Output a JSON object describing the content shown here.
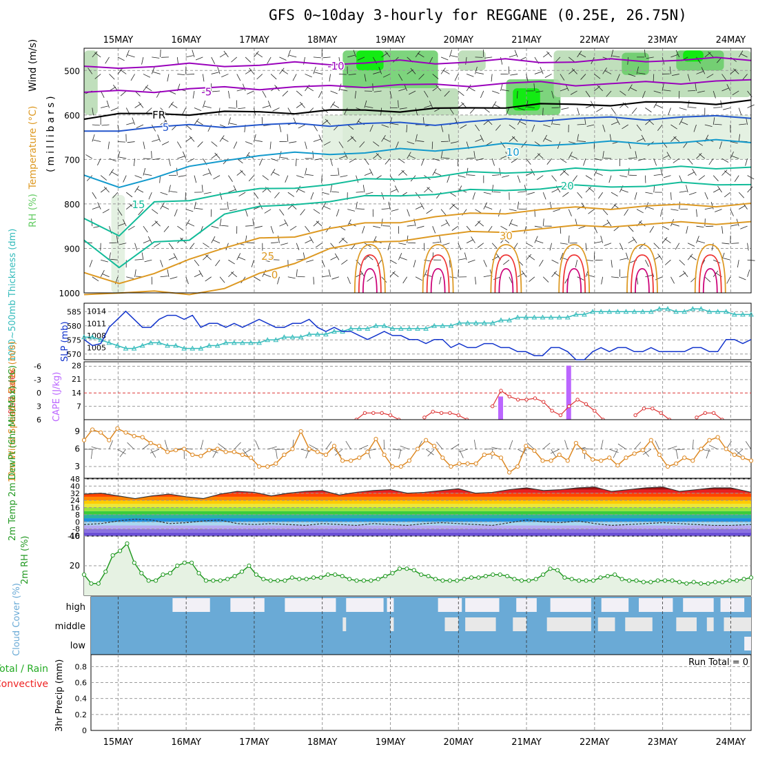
{
  "title": "GFS 0~10day 3-hourly for REGGANE (0.25E, 26.75N)",
  "colors": {
    "frame": "#000000",
    "grid": "#999999",
    "rh_light": "#dfeedd",
    "rh_mid": "#b5d9b0",
    "rh_strong": "#66cc66",
    "rh_bright": "#00ee00",
    "temp_purple": "#9900bb",
    "temp_blue": "#2255cc",
    "temp_cyan": "#1199cc",
    "temp_teal": "#11bb99",
    "temp_orange": "#dd9922",
    "temp_red": "#ee3333",
    "temp_magenta": "#cc0077",
    "slp": "#1133cc",
    "thickness": "#33bbbb",
    "lifted_index": "#dd3333",
    "cape": "#bb66ff",
    "wind10": "#dd8822",
    "rh2m": "#229922",
    "rh2m_fill": "#e6f2e3",
    "rh2m_fill_dark": "#a9cba4",
    "cloud": "#6aaad6",
    "cloud_gap": "#f2f0f6",
    "cloud_gap2": "#e8e8e8",
    "precip_total": "#22aa22",
    "precip_conv": "#ee2222"
  },
  "chart_data": [
    {
      "id": "upper_air",
      "type": "heatmap",
      "ylabel_parts": [
        "RH (%)",
        "Temperature (°C)",
        "Wind (m/s)"
      ],
      "ylabel_sub": "(millibars)",
      "y_ticks": [
        500,
        600,
        700,
        800,
        900,
        1000
      ],
      "ylim": [
        450,
        1000
      ],
      "x_ticks": [
        "15MAY",
        "16MAY",
        "17MAY",
        "18MAY",
        "19MAY",
        "20MAY",
        "21MAY",
        "22MAY",
        "23MAY",
        "24MAY"
      ],
      "x_day_start": 14.5,
      "x_day_end": 24.3,
      "isotherms": [
        {
          "label": "-10",
          "color_key": "temp_purple",
          "p": [
            495,
            492,
            490,
            488,
            488,
            487,
            485,
            484,
            482,
            481,
            482,
            480,
            478,
            479,
            480,
            478,
            477,
            476,
            475,
            474
          ]
        },
        {
          "label": "-5",
          "color_key": "temp_purple",
          "p": [
            550,
            548,
            545,
            542,
            540,
            539,
            538,
            537,
            534,
            533,
            534,
            532,
            530,
            528,
            530,
            531,
            528,
            526,
            525,
            524
          ]
        },
        {
          "label": "FR",
          "color_key": "frame",
          "p": [
            605,
            600,
            598,
            596,
            595,
            594,
            593,
            592,
            590,
            589,
            588,
            585,
            580,
            578,
            577,
            575,
            574,
            572,
            572,
            570
          ]
        },
        {
          "label": "5",
          "color_key": "temp_blue",
          "p": [
            640,
            632,
            628,
            625,
            624,
            623,
            622,
            621,
            620,
            620,
            619,
            616,
            612,
            610,
            609,
            608,
            607,
            606,
            605,
            603
          ]
        },
        {
          "label": "10",
          "color_key": "temp_cyan",
          "p": [
            740,
            760,
            740,
            720,
            700,
            690,
            688,
            686,
            684,
            680,
            678,
            672,
            668,
            666,
            664,
            663,
            662,
            661,
            660,
            659
          ]
        },
        {
          "label": "15",
          "color_key": "temp_teal",
          "p": [
            830,
            870,
            800,
            790,
            775,
            770,
            762,
            755,
            748,
            742,
            738,
            732,
            728,
            726,
            724,
            722,
            721,
            720,
            718,
            716
          ]
        },
        {
          "label": "20",
          "color_key": "temp_teal",
          "p": [
            880,
            940,
            890,
            880,
            820,
            810,
            800,
            792,
            786,
            780,
            776,
            772,
            768,
            764,
            762,
            760,
            758,
            756,
            755,
            754
          ]
        },
        {
          "label": "25",
          "color_key": "temp_orange",
          "p": [
            950,
            980,
            960,
            920,
            900,
            880,
            870,
            856,
            846,
            838,
            830,
            824,
            818,
            814,
            810,
            808,
            806,
            804,
            802,
            800
          ]
        },
        {
          "label": "30",
          "color_key": "temp_orange",
          "p": [
            1000,
            1000,
            1000,
            1000,
            990,
            960,
            930,
            900,
            890,
            880,
            872,
            866,
            860,
            856,
            852,
            848,
            846,
            844,
            842,
            840
          ]
        }
      ],
      "contour_labels": [
        "-10",
        "-5",
        "FR",
        "5",
        "10",
        "15",
        "20",
        "25",
        "30",
        "0"
      ],
      "rh_patches": [
        {
          "x0": 18.3,
          "x1": 19.7,
          "p0": 455,
          "p1": 540,
          "level": "rh_strong"
        },
        {
          "x0": 18.5,
          "x1": 18.9,
          "p0": 455,
          "p1": 500,
          "level": "rh_bright"
        },
        {
          "x0": 18.3,
          "x1": 20.0,
          "p0": 540,
          "p1": 700,
          "level": "rh_mid"
        },
        {
          "x0": 18.0,
          "x1": 24.3,
          "p0": 600,
          "p1": 700,
          "level": "rh_light"
        },
        {
          "x0": 20.7,
          "x1": 21.5,
          "p0": 520,
          "p1": 600,
          "level": "rh_strong"
        },
        {
          "x0": 20.8,
          "x1": 21.2,
          "p0": 540,
          "p1": 590,
          "level": "rh_bright"
        },
        {
          "x0": 21.4,
          "x1": 24.3,
          "p0": 455,
          "p1": 560,
          "level": "rh_mid"
        },
        {
          "x0": 22.4,
          "x1": 22.8,
          "p0": 460,
          "p1": 510,
          "level": "rh_strong"
        },
        {
          "x0": 23.2,
          "x1": 23.9,
          "p0": 455,
          "p1": 500,
          "level": "rh_strong"
        },
        {
          "x0": 23.3,
          "x1": 23.6,
          "p0": 455,
          "p1": 480,
          "level": "rh_bright"
        },
        {
          "x0": 20.0,
          "x1": 20.4,
          "p0": 455,
          "p1": 500,
          "level": "rh_mid"
        },
        {
          "x0": 14.5,
          "x1": 14.7,
          "p0": 455,
          "p1": 600,
          "level": "rh_mid"
        },
        {
          "x0": 14.9,
          "x1": 15.1,
          "p0": 780,
          "p1": 1000,
          "level": "rh_light"
        }
      ]
    },
    {
      "id": "slp_thickness",
      "type": "line",
      "ylabel_left": "1000~500mb Thickness (dm)",
      "ylabel_right": "SLP (mb)",
      "left_ticks": [
        570,
        575,
        580,
        585
      ],
      "right_ticks": [
        1005,
        1008,
        1011,
        1014
      ],
      "series": [
        {
          "name": "SLP (mb)",
          "color_key": "slp",
          "values": [
            1007,
            1005.5,
            1006,
            1010,
            1012,
            1014,
            1012,
            1010,
            1010,
            1012,
            1013,
            1013,
            1012,
            1013,
            1010,
            1011,
            1011,
            1010,
            1011,
            1010,
            1011,
            1012,
            1011,
            1010,
            1010,
            1011,
            1011,
            1012,
            1010,
            1009,
            1010,
            1009,
            1009,
            1008,
            1007,
            1008,
            1009,
            1008,
            1008,
            1007,
            1007,
            1006,
            1007,
            1007,
            1005,
            1006,
            1005,
            1005,
            1006,
            1006,
            1005,
            1005,
            1004,
            1004,
            1003,
            1003,
            1005,
            1005,
            1004,
            1002,
            1002,
            1004,
            1005,
            1004,
            1005,
            1005,
            1004,
            1004,
            1005,
            1004,
            1004,
            1004,
            1004,
            1005,
            1005,
            1004,
            1004,
            1007,
            1007,
            1006,
            1007
          ]
        },
        {
          "name": "Thickness (dm)",
          "color_key": "thickness",
          "values": [
            576,
            576,
            575,
            574,
            573,
            572,
            572,
            573,
            574,
            574,
            573,
            573,
            572,
            572,
            572,
            573,
            573,
            574,
            574,
            574,
            574,
            574,
            575,
            575,
            576,
            576,
            576,
            577,
            577,
            577,
            578,
            578,
            579,
            579,
            579,
            580,
            580,
            579,
            579,
            579,
            579,
            579,
            580,
            580,
            580,
            581,
            581,
            581,
            581,
            581,
            582,
            582,
            583,
            583,
            583,
            583,
            583,
            583,
            583,
            584,
            584,
            585,
            585,
            585,
            585,
            585,
            585,
            585,
            585,
            586,
            586,
            585,
            585,
            586,
            586,
            585,
            585,
            585,
            584,
            584,
            584
          ]
        }
      ]
    },
    {
      "id": "lifted_cape",
      "type": "bar",
      "ylabel_left": "Lifted Index",
      "ylabel_right": "CAPE (J/kg)",
      "left_ticks": [
        "-6",
        "-3",
        "0",
        "3",
        "6"
      ],
      "right_ticks": [
        7,
        14,
        21,
        28
      ],
      "cape_bars": [
        {
          "day": 20.62,
          "value": 12
        },
        {
          "day": 21.62,
          "value": 28
        }
      ],
      "lifted_index": [
        {
          "day": 18.5,
          "values": [
            6,
            4.5,
            4.5,
            4.5,
            5,
            6
          ]
        },
        {
          "day": 19.5,
          "values": [
            5.5,
            4.2,
            4.5,
            4.5,
            5,
            6
          ]
        },
        {
          "day": 20.5,
          "values": [
            3,
            -0.5,
            0.8,
            1.5,
            1.5,
            1.2,
            2,
            4,
            5,
            3,
            1.5,
            2.5,
            4,
            6
          ]
        },
        {
          "day": 22.6,
          "values": [
            5,
            3.5,
            3.5,
            4.5,
            6
          ]
        },
        {
          "day": 23.5,
          "values": [
            5.5,
            4.5,
            4.5,
            6
          ]
        }
      ]
    },
    {
      "id": "wind10",
      "type": "line",
      "ylabel": "10m Wind Speed & Barbs (m/s)",
      "ticks": [
        3,
        6,
        9
      ],
      "series": [
        {
          "name": "10m Wind Speed",
          "color_key": "wind10",
          "values": [
            7.5,
            9.3,
            8.8,
            7.5,
            9.5,
            8.8,
            8.2,
            8,
            7,
            6.5,
            5.5,
            5.8,
            6,
            5,
            4.8,
            5.8,
            6,
            5.5,
            5.5,
            5,
            4.5,
            3,
            3,
            3.5,
            5,
            6,
            9,
            6,
            5.5,
            5,
            6.5,
            4,
            4,
            4.5,
            5.5,
            7.7,
            5,
            3,
            3,
            4,
            6,
            7.5,
            6.5,
            4.5,
            3,
            3.5,
            3.5,
            3.5,
            5,
            5.2,
            4.5,
            2,
            3,
            6.5,
            5.7,
            4,
            4,
            5,
            4,
            7,
            5.5,
            4.2,
            4,
            4.5,
            3.2,
            4.5,
            5.2,
            5.8,
            7.5,
            5,
            3,
            3.5,
            4.5,
            4,
            6,
            7.5,
            8,
            6,
            5,
            4.5,
            4
          ]
        }
      ]
    },
    {
      "id": "temp2m",
      "type": "area",
      "ylabel": "2m Temp 2m DewPt (6hr Min/Max) (°C)",
      "ticks": [
        -8,
        0,
        8,
        16,
        24,
        32,
        40,
        48
      ],
      "tick_labels": [
        "-8",
        "0",
        "8",
        "16",
        "24",
        "32",
        "40",
        "48"
      ],
      "bottom_label": "-16",
      "temp_days": [
        14.5,
        14.75,
        15.0,
        15.25,
        15.5,
        15.75,
        16.0,
        16.25,
        16.5,
        16.75,
        17.0,
        17.25,
        17.5,
        17.75,
        18.0,
        18.25,
        18.5,
        18.75,
        19.0,
        19.25,
        19.5,
        19.75,
        20.0,
        20.25,
        20.5,
        20.75,
        21.0,
        21.25,
        21.5,
        21.75,
        22.0,
        22.25,
        22.5,
        22.75,
        23.0,
        23.25,
        23.5,
        23.75,
        24.0,
        24.3
      ],
      "temp_values": [
        31,
        32,
        29,
        26,
        29,
        31,
        28,
        26,
        31,
        34,
        33,
        29,
        32,
        34,
        35,
        30,
        33,
        35,
        36,
        32,
        33,
        35,
        37,
        32,
        33,
        36,
        38,
        35,
        36,
        38,
        39,
        34,
        36,
        38,
        39,
        34,
        36,
        38,
        38,
        33
      ],
      "dew_values": [
        -3,
        -2,
        1,
        3,
        2,
        -2,
        -1,
        1,
        2,
        -2,
        -3,
        -2,
        -3,
        -4,
        -2,
        -3,
        -4,
        -2,
        -3,
        -4,
        -2,
        -1,
        -2,
        -3,
        -4,
        -1,
        2,
        0,
        -1,
        1,
        -2,
        -4,
        -3,
        -2,
        -1,
        -2,
        -3,
        -4,
        -4,
        -3
      ]
    },
    {
      "id": "rh2m",
      "type": "area",
      "ylabel": "2m RH (%)",
      "ticks": [
        20,
        40
      ],
      "values": [
        14,
        8,
        8,
        16,
        27,
        30,
        35,
        22,
        15,
        10,
        10,
        14,
        15,
        20,
        22,
        22,
        15,
        10,
        10,
        10,
        11,
        13,
        16,
        20,
        14,
        11,
        10,
        10,
        10,
        12,
        11,
        11,
        12,
        12,
        14,
        14,
        13,
        11,
        10,
        10,
        10,
        11,
        13,
        15,
        18,
        18,
        17,
        14,
        13,
        11,
        10,
        10,
        10,
        11,
        12,
        12,
        13,
        14,
        14,
        13,
        11,
        10,
        10,
        11,
        14,
        18,
        17,
        12,
        11,
        10,
        10,
        10,
        12,
        13,
        14,
        11,
        10,
        10,
        9,
        9,
        10,
        10,
        10,
        9,
        8,
        9,
        8,
        8,
        9,
        9,
        10,
        10,
        11,
        12
      ]
    },
    {
      "id": "cloud",
      "type": "heatmap",
      "ylabel": "Cloud Cover (%)",
      "rows": [
        "high",
        "middle",
        "low"
      ],
      "high_gaps": [
        [
          15.8,
          16.35
        ],
        [
          16.65,
          17.15
        ],
        [
          17.45,
          18.2
        ],
        [
          18.35,
          18.9
        ],
        [
          18.95,
          19.05
        ],
        [
          19.7,
          20.05
        ],
        [
          20.1,
          20.6
        ],
        [
          20.85,
          21.15
        ],
        [
          21.35,
          21.95
        ],
        [
          22.1,
          22.5
        ],
        [
          22.65,
          23.15
        ],
        [
          23.3,
          23.75
        ],
        [
          23.85,
          24.2
        ]
      ],
      "mid_gaps": [
        [
          18.3,
          18.35
        ],
        [
          19.0,
          19.05
        ],
        [
          19.8,
          20.0
        ],
        [
          20.1,
          20.55
        ],
        [
          20.8,
          21.0
        ],
        [
          21.3,
          21.95
        ],
        [
          22.05,
          22.3
        ],
        [
          22.45,
          22.85
        ],
        [
          23.2,
          23.5
        ],
        [
          23.65,
          23.75
        ],
        [
          23.9,
          24.3
        ]
      ],
      "low_gaps": [
        [
          24.2,
          24.3
        ]
      ]
    },
    {
      "id": "precip",
      "type": "bar",
      "ylabel_left_1": "Total / Rain",
      "ylabel_left_2": "Convective",
      "ylabel": "3hr Precip (mm)",
      "ticks": [
        "0",
        "0.2",
        "0.4",
        "0.6",
        "0.8"
      ],
      "tick_values": [
        0,
        0.2,
        0.4,
        0.6,
        0.8
      ],
      "values": [],
      "run_total_label": "Run Total = 0"
    }
  ]
}
